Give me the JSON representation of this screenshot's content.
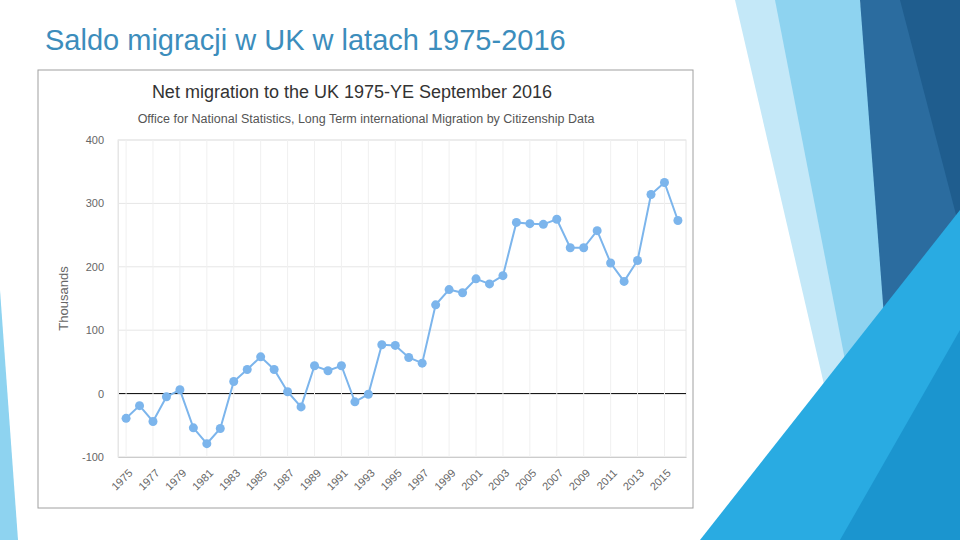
{
  "slide": {
    "title": "Saldo migracji w UK w latach 1975-2016"
  },
  "chart_data": {
    "type": "line",
    "title": "Net migration to the UK 1975-YE September 2016",
    "subtitle": "Office for National Statistics, Long Term international Migration by Citizenship Data",
    "ylabel": "Thousands",
    "x": [
      1975,
      1976,
      1977,
      1978,
      1979,
      1980,
      1981,
      1982,
      1983,
      1984,
      1985,
      1986,
      1987,
      1988,
      1989,
      1990,
      1991,
      1992,
      1993,
      1994,
      1995,
      1996,
      1997,
      1998,
      1999,
      2000,
      2001,
      2002,
      2003,
      2004,
      2005,
      2006,
      2007,
      2008,
      2009,
      2010,
      2011,
      2012,
      2013,
      2014,
      2015,
      2016
    ],
    "values": [
      -39,
      -19,
      -44,
      -5,
      6,
      -54,
      -79,
      -55,
      19,
      38,
      58,
      38,
      3,
      -21,
      44,
      36,
      44,
      -13,
      -1,
      77,
      76,
      57,
      48,
      140,
      164,
      159,
      181,
      173,
      186,
      270,
      268,
      267,
      275,
      230,
      230,
      257,
      206,
      177,
      210,
      314,
      333,
      273
    ],
    "color": "#7cb5ec",
    "marker": "circle",
    "xlim": [
      1974.4,
      2016.6
    ],
    "xticks": [
      1975,
      1977,
      1979,
      1981,
      1983,
      1985,
      1987,
      1989,
      1991,
      1993,
      1995,
      1997,
      1999,
      2001,
      2003,
      2005,
      2007,
      2009,
      2011,
      2013,
      2015
    ],
    "ylim": [
      -100,
      400
    ],
    "yticks": [
      -100,
      0,
      100,
      200,
      300,
      400
    ],
    "grid": true
  }
}
